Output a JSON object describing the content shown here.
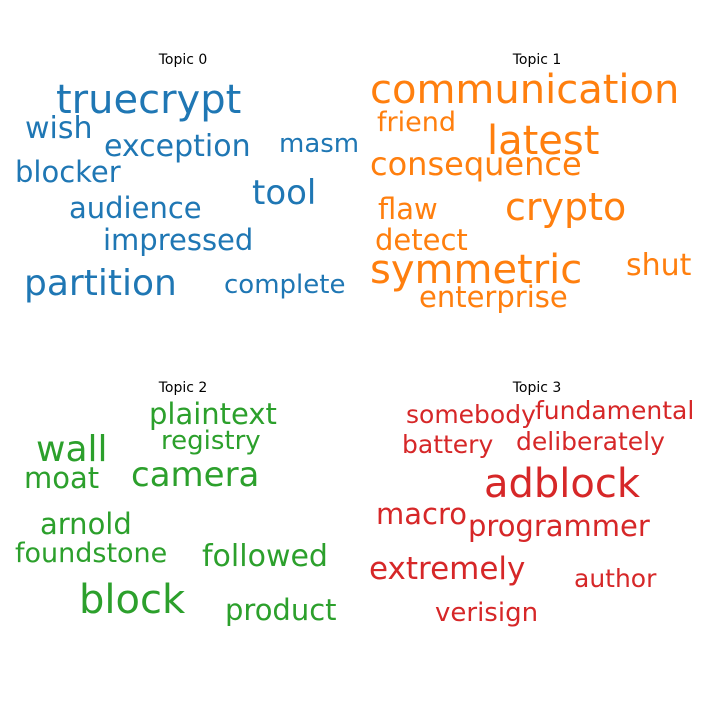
{
  "chart_data": {
    "type": "wordcloud",
    "topics": [
      {
        "title": "Topic 0",
        "color": "#1f77b4",
        "words": [
          "truecrypt",
          "wish",
          "exception",
          "masm",
          "blocker",
          "tool",
          "audience",
          "impressed",
          "partition",
          "complete"
        ]
      },
      {
        "title": "Topic 1",
        "color": "#ff7f0e",
        "words": [
          "communication",
          "friend",
          "latest",
          "consequence",
          "flaw",
          "crypto",
          "detect",
          "symmetric",
          "shut",
          "enterprise"
        ]
      },
      {
        "title": "Topic 2",
        "color": "#2ca02c",
        "words": [
          "plaintext",
          "registry",
          "wall",
          "moat",
          "camera",
          "arnold",
          "foundstone",
          "followed",
          "block",
          "product"
        ]
      },
      {
        "title": "Topic 3",
        "color": "#d62728",
        "words": [
          "somebody",
          "fundamental",
          "battery",
          "deliberately",
          "adblock",
          "macro",
          "programmer",
          "extremely",
          "author",
          "verisign"
        ]
      }
    ]
  }
}
